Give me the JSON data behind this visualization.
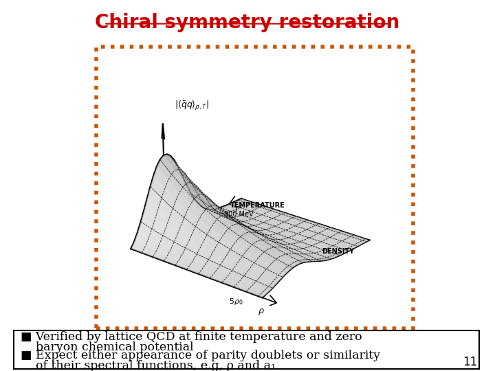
{
  "title": "Chiral symmetry restoration",
  "title_color": "#cc0000",
  "title_fontsize": 20,
  "bg_color": "#ffffff",
  "border_color": "#cc5500",
  "bullet1_line1": "■ Verified by lattice QCD at finite temperature and zero",
  "bullet1_line2": "    baryon chemical potential",
  "bullet2_line1": "■ Expect either appearance of parity doublets or similarity",
  "bullet2_line2": "    of their spectral functions, e.g, ρ and a₁",
  "bullet_fontsize": 12.5,
  "page_number": "11",
  "view_elev": 22,
  "view_azim": -50
}
